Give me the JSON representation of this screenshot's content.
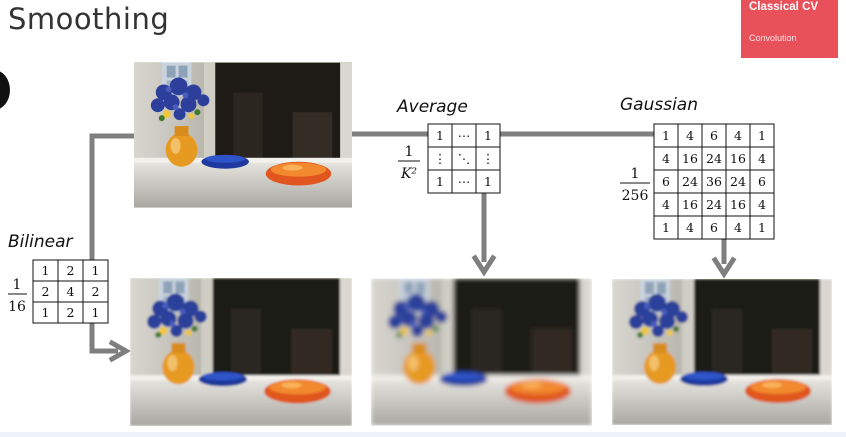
{
  "header": {
    "title": "Smoothing"
  },
  "badge": {
    "title": "Classical CV",
    "subtitle": "Convolution"
  },
  "colors": {
    "accent": "#e8515a",
    "connector": "#7f7f7f"
  },
  "methods": {
    "bilinear": {
      "label": "Bilinear",
      "factor_num": "1",
      "factor_den": "16",
      "kernel": [
        [
          "1",
          "2",
          "1"
        ],
        [
          "2",
          "4",
          "2"
        ],
        [
          "1",
          "2",
          "1"
        ]
      ]
    },
    "average": {
      "label": "Average",
      "factor_num": "1",
      "factor_den": "K²",
      "kernel": [
        [
          "1",
          "⋯",
          "1"
        ],
        [
          "⋮",
          "⋱",
          "⋮"
        ],
        [
          "1",
          "⋯",
          "1"
        ]
      ]
    },
    "gaussian": {
      "label": "Gaussian",
      "factor_num": "1",
      "factor_den": "256",
      "kernel": [
        [
          "1",
          "4",
          "6",
          "4",
          "1"
        ],
        [
          "4",
          "16",
          "24",
          "16",
          "4"
        ],
        [
          "6",
          "24",
          "36",
          "24",
          "6"
        ],
        [
          "4",
          "16",
          "24",
          "16",
          "4"
        ],
        [
          "1",
          "4",
          "6",
          "4",
          "1"
        ]
      ]
    }
  },
  "images": [
    {
      "role": "source",
      "blur": 0
    },
    {
      "role": "bilinear-result",
      "blur": 1
    },
    {
      "role": "average-result",
      "blur": 2.5
    },
    {
      "role": "gaussian-result",
      "blur": 1.2
    }
  ]
}
